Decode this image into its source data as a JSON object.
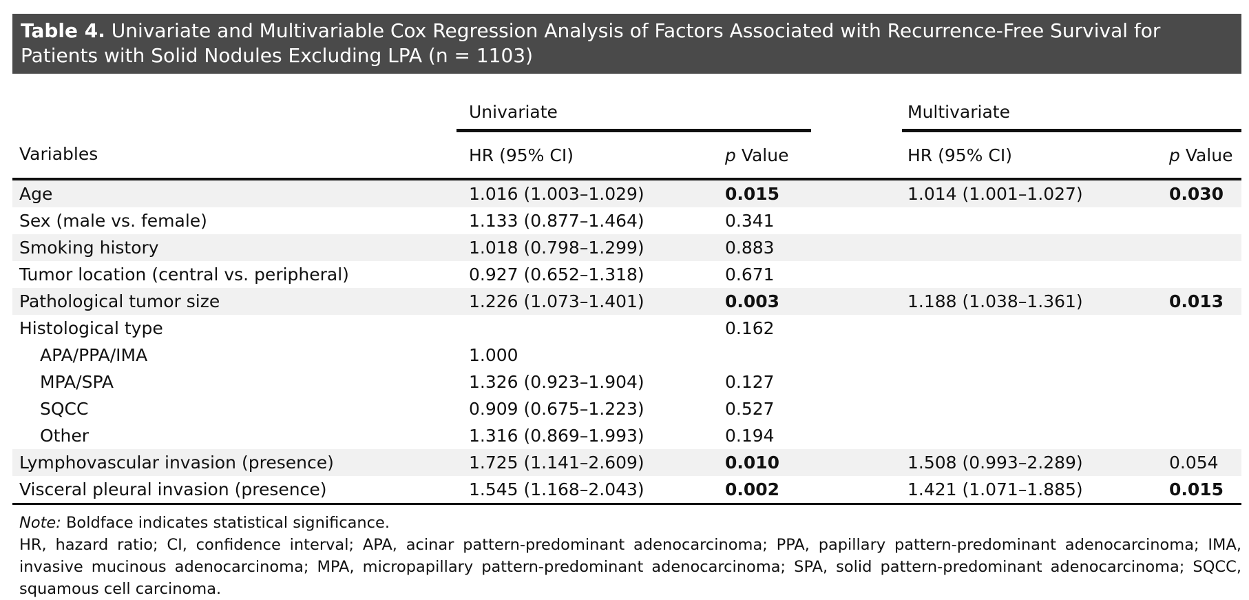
{
  "table": {
    "title_label": "Table 4.",
    "title_text": "Univariate and Multivariable Cox Regression Analysis of Factors Associated with Recurrence-Free Survival for Patients with Solid Nodules Excluding LPA (n = 1103)",
    "group_headers": {
      "univariate": "Univariate",
      "multivariate": "Multivariate"
    },
    "column_headers": {
      "variables": "Variables",
      "hr_uni": "HR (95% CI)",
      "p_uni_italic": "p",
      "p_uni_rest": " Value",
      "hr_multi": "HR (95% CI)",
      "p_multi_italic": "p",
      "p_multi_rest": " Value"
    },
    "rows": [
      {
        "variable": "Age",
        "hr_uni": "1.016 (1.003–1.029)",
        "p_uni": "0.015",
        "hr_multi": "1.014 (1.001–1.027)",
        "p_multi": "0.030"
      },
      {
        "variable": "Sex (male vs. female)",
        "hr_uni": "1.133 (0.877–1.464)",
        "p_uni": "0.341",
        "hr_multi": "",
        "p_multi": ""
      },
      {
        "variable": "Smoking history",
        "hr_uni": "1.018 (0.798–1.299)",
        "p_uni": "0.883",
        "hr_multi": "",
        "p_multi": ""
      },
      {
        "variable": "Tumor location (central vs. peripheral)",
        "hr_uni": "0.927 (0.652–1.318)",
        "p_uni": "0.671",
        "hr_multi": "",
        "p_multi": ""
      },
      {
        "variable": "Pathological tumor size",
        "hr_uni": "1.226 (1.073–1.401)",
        "p_uni": "0.003",
        "hr_multi": "1.188 (1.038–1.361)",
        "p_multi": "0.013"
      },
      {
        "variable": "Histological type",
        "hr_uni": "",
        "p_uni": "0.162",
        "hr_multi": "",
        "p_multi": ""
      },
      {
        "variable": "APA/PPA/IMA",
        "hr_uni": "1.000",
        "p_uni": "",
        "hr_multi": "",
        "p_multi": ""
      },
      {
        "variable": "MPA/SPA",
        "hr_uni": "1.326 (0.923–1.904)",
        "p_uni": "0.127",
        "hr_multi": "",
        "p_multi": ""
      },
      {
        "variable": "SQCC",
        "hr_uni": "0.909 (0.675–1.223)",
        "p_uni": "0.527",
        "hr_multi": "",
        "p_multi": ""
      },
      {
        "variable": "Other",
        "hr_uni": "1.316 (0.869–1.993)",
        "p_uni": "0.194",
        "hr_multi": "",
        "p_multi": ""
      },
      {
        "variable": "Lymphovascular invasion (presence)",
        "hr_uni": "1.725 (1.141–2.609)",
        "p_uni": "0.010",
        "hr_multi": "1.508 (0.993–2.289)",
        "p_multi": "0.054"
      },
      {
        "variable": "Visceral pleural invasion (presence)",
        "hr_uni": "1.545 (1.168–2.043)",
        "p_uni": "0.002",
        "hr_multi": "1.421 (1.071–1.885)",
        "p_multi": "0.015"
      }
    ],
    "note_label": "Note:",
    "note_text": " Boldface indicates statistical significance.",
    "abbreviations": "HR, hazard ratio; CI, confidence interval; APA, acinar pattern-predominant adenocarcinoma; PPA, papillary pattern-predominant adenocarcinoma; IMA, invasive mucinous adenocarcinoma; MPA, micropapillary pattern-predominant adenocarcinoma; SPA, solid pattern-predominant adenocarcinoma; SQCC, squamous cell carcinoma."
  }
}
